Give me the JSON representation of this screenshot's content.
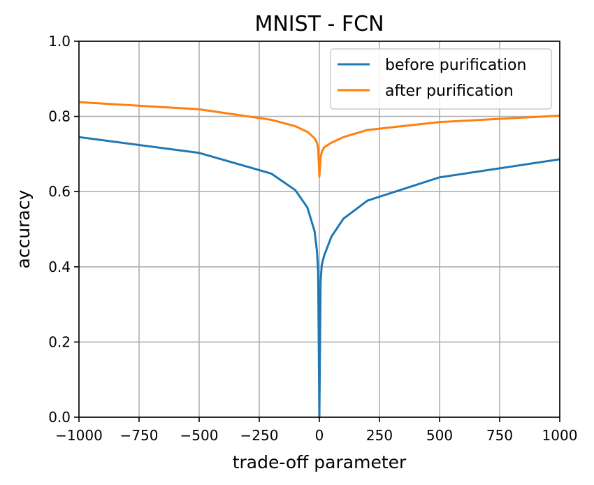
{
  "chart_data": {
    "type": "line",
    "title": "MNIST - FCN",
    "xlabel": "trade-off parameter",
    "ylabel": "accuracy",
    "xlim": [
      -1000,
      1000
    ],
    "ylim": [
      0.0,
      1.0
    ],
    "xticks": [
      -1000,
      -750,
      -500,
      -250,
      0,
      250,
      500,
      750,
      1000
    ],
    "xtick_labels": [
      "−1000",
      "−750",
      "−500",
      "−250",
      "0",
      "250",
      "500",
      "750",
      "1000"
    ],
    "yticks": [
      0.0,
      0.2,
      0.4,
      0.6,
      0.8,
      1.0
    ],
    "ytick_labels": [
      "0.0",
      "0.2",
      "0.4",
      "0.6",
      "0.8",
      "1.0"
    ],
    "grid": true,
    "legend_position": "top-right",
    "series": [
      {
        "name": "before purification",
        "color": "#1f77b4",
        "x": [
          -1000,
          -500,
          -200,
          -100,
          -50,
          -20,
          -10,
          -5,
          0,
          5,
          10,
          20,
          50,
          100,
          200,
          500,
          1000
        ],
        "y": [
          0.745,
          0.703,
          0.648,
          0.604,
          0.558,
          0.495,
          0.442,
          0.385,
          0.0,
          0.36,
          0.405,
          0.43,
          0.48,
          0.528,
          0.576,
          0.638,
          0.686
        ]
      },
      {
        "name": "after purification",
        "color": "#ff7f0e",
        "x": [
          -1000,
          -500,
          -200,
          -100,
          -50,
          -20,
          -10,
          -5,
          0,
          5,
          10,
          20,
          50,
          100,
          200,
          500,
          1000
        ],
        "y": [
          0.838,
          0.819,
          0.791,
          0.774,
          0.759,
          0.742,
          0.73,
          0.715,
          0.64,
          0.69,
          0.705,
          0.718,
          0.73,
          0.745,
          0.764,
          0.785,
          0.802
        ]
      }
    ]
  }
}
